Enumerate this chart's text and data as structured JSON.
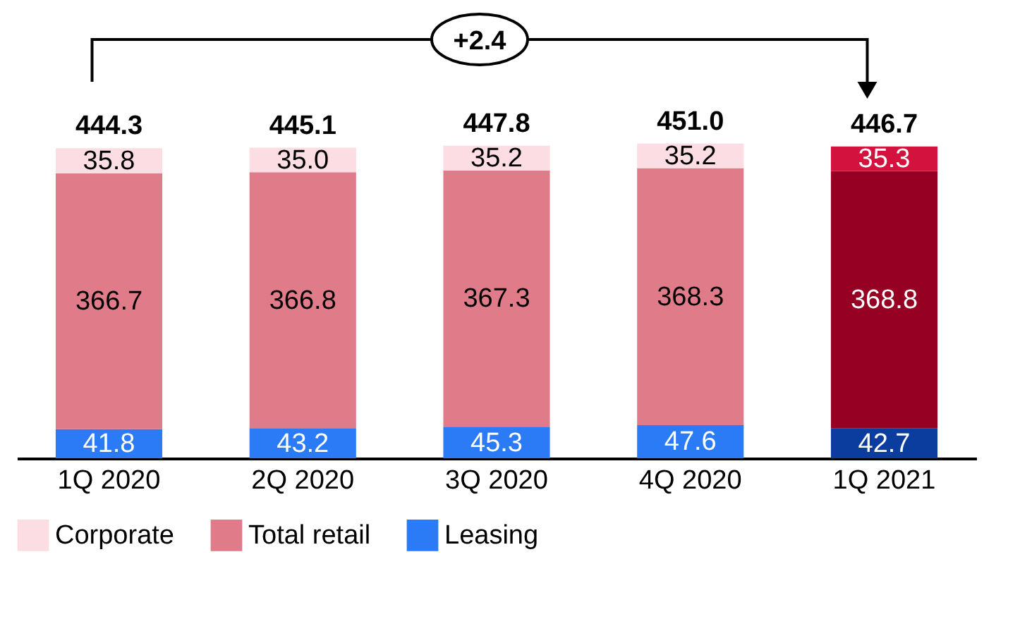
{
  "chart_data": {
    "type": "bar",
    "stacked": true,
    "legend": "bottom",
    "categories": [
      "1Q 2020",
      "2Q 2020",
      "3Q 2020",
      "4Q 2020",
      "1Q 2021"
    ],
    "series": [
      {
        "name": "Leasing",
        "values": [
          41.8,
          43.2,
          45.3,
          47.6,
          42.7
        ],
        "value_labels": [
          "41.8",
          "43.2",
          "45.3",
          "47.6",
          "42.7"
        ],
        "colors": [
          "#2c7bf6",
          "#2c7bf6",
          "#2c7bf6",
          "#2c7bf6",
          "#0b3d9e"
        ]
      },
      {
        "name": "Total retail",
        "values": [
          366.7,
          366.8,
          367.3,
          368.3,
          368.8
        ],
        "value_labels": [
          "366.7",
          "366.8",
          "367.3",
          "368.3",
          "368.8"
        ],
        "colors": [
          "#e07b8a",
          "#e07b8a",
          "#e07b8a",
          "#e07b8a",
          "#960022"
        ]
      },
      {
        "name": "Corporate",
        "values": [
          35.8,
          35.0,
          35.2,
          35.2,
          35.3
        ],
        "value_labels": [
          "35.8",
          "35.0",
          "35.2",
          "35.2",
          "35.3"
        ],
        "colors": [
          "#fcdde3",
          "#fcdde3",
          "#fcdde3",
          "#fcdde3",
          "#d3123d"
        ]
      }
    ],
    "totals": [
      "444.3",
      "445.1",
      "447.8",
      "451.0",
      "446.7"
    ],
    "annotations": [
      "+2.4"
    ]
  }
}
